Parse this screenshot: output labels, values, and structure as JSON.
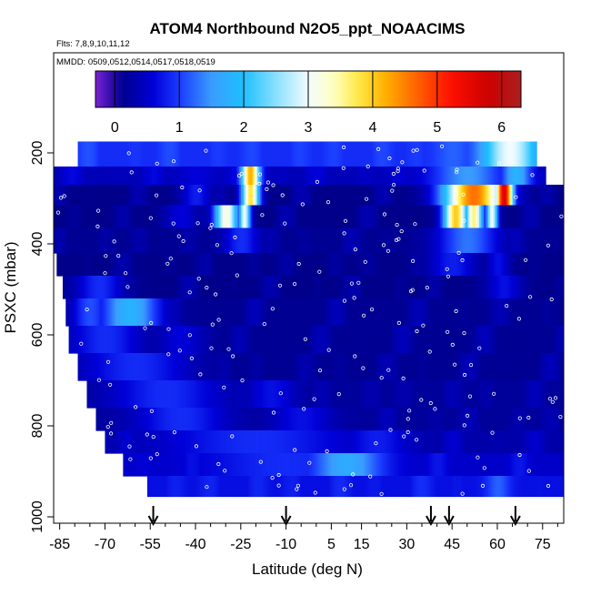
{
  "chart_data": {
    "type": "heatmap",
    "title": "ATOM4 Northbound N2O5_ppt_NOAACIMS",
    "subtitle_flights": "Flts: 7,8,9,10,11,12",
    "subtitle_dates": "MMDD: 0509,0512,0514,0517,0518,0519",
    "xlabel": "Latitude (deg N)",
    "ylabel": "PSXC (mbar)",
    "x_ticks": [
      "-85",
      "-70",
      "-55",
      "-40",
      "-25",
      "-10",
      "5",
      "15",
      "30",
      "45",
      "60",
      "75"
    ],
    "x_tick_values": [
      -85,
      -70,
      -55,
      -40,
      -25,
      -10,
      5,
      15,
      30,
      45,
      60,
      75
    ],
    "y_ticks": [
      "200",
      "400",
      "600",
      "800",
      "1000"
    ],
    "y_tick_values": [
      200,
      400,
      600,
      800,
      1000
    ],
    "xlim": [
      -87,
      82
    ],
    "ylim": [
      1010,
      0
    ],
    "colorbar": {
      "min": -0.3,
      "max": 6.3,
      "ticks": [
        "0",
        "1",
        "2",
        "3",
        "4",
        "5",
        "6"
      ],
      "tick_values": [
        0,
        1,
        2,
        3,
        4,
        5,
        6
      ]
    },
    "arrow_latitudes": [
      -54,
      -10,
      38,
      44,
      66
    ],
    "heatmap_rows": [
      {
        "p_top": 175,
        "p_bot": 230,
        "lat_start": -79,
        "lat_end": 73,
        "base": 0.9,
        "hotspots": [
          {
            "lat": 64,
            "w": 9,
            "v": 3.0
          },
          {
            "lat": 45,
            "w": 6,
            "v": 1.2
          },
          {
            "lat": 0,
            "w": 20,
            "v": 0.9
          }
        ]
      },
      {
        "p_top": 230,
        "p_bot": 270,
        "lat_start": -87,
        "lat_end": 76,
        "base": 0.4,
        "hotspots": [
          {
            "lat": -22,
            "w": 3,
            "v": 4.2
          },
          {
            "lat": 50,
            "w": 12,
            "v": 1.5
          },
          {
            "lat": 66,
            "w": 5,
            "v": 1.8
          },
          {
            "lat": -40,
            "w": 6,
            "v": 0.6
          }
        ]
      },
      {
        "p_top": 270,
        "p_bot": 315,
        "lat_start": -87,
        "lat_end": 82,
        "base": 0.1,
        "hotspots": [
          {
            "lat": -22,
            "w": 3,
            "v": 3.8
          },
          {
            "lat": 52,
            "w": 10,
            "v": 4.6
          },
          {
            "lat": 62,
            "w": 3,
            "v": 5.6
          },
          {
            "lat": -40,
            "w": 5,
            "v": 0.8
          }
        ]
      },
      {
        "p_top": 315,
        "p_bot": 365,
        "lat_start": -87,
        "lat_end": 82,
        "base": 0.1,
        "hotspots": [
          {
            "lat": -30,
            "w": 4,
            "v": 3.2
          },
          {
            "lat": -24,
            "w": 2,
            "v": 3.0
          },
          {
            "lat": 46,
            "w": 4,
            "v": 4.0
          },
          {
            "lat": 52,
            "w": 3,
            "v": 3.6
          },
          {
            "lat": 58,
            "w": 2,
            "v": 3.0
          },
          {
            "lat": -45,
            "w": 6,
            "v": 0.6
          }
        ]
      },
      {
        "p_top": 365,
        "p_bot": 420,
        "lat_start": -87,
        "lat_end": 82,
        "base": 0.15,
        "hotspots": [
          {
            "lat": -25,
            "w": 6,
            "v": 0.9
          },
          {
            "lat": 50,
            "w": 10,
            "v": 1.3
          }
        ]
      },
      {
        "p_top": 420,
        "p_bot": 470,
        "lat_start": -86,
        "lat_end": 82,
        "base": 0.1,
        "hotspots": [
          {
            "lat": 45,
            "w": 8,
            "v": 0.8
          },
          {
            "lat": 60,
            "w": 4,
            "v": 0.7
          }
        ]
      },
      {
        "p_top": 470,
        "p_bot": 520,
        "lat_start": -84,
        "lat_end": 82,
        "base": 0.1,
        "hotspots": [
          {
            "lat": -72,
            "w": 8,
            "v": 0.9
          },
          {
            "lat": 62,
            "w": 6,
            "v": 0.7
          }
        ]
      },
      {
        "p_top": 520,
        "p_bot": 580,
        "lat_start": -83,
        "lat_end": 82,
        "base": 0.15,
        "hotspots": [
          {
            "lat": -62,
            "w": 10,
            "v": 1.8
          },
          {
            "lat": -75,
            "w": 6,
            "v": 1.1
          }
        ]
      },
      {
        "p_top": 580,
        "p_bot": 640,
        "lat_start": -82,
        "lat_end": 82,
        "base": 0.15,
        "hotspots": [
          {
            "lat": -70,
            "w": 12,
            "v": 0.9
          },
          {
            "lat": -45,
            "w": 8,
            "v": 0.6
          }
        ]
      },
      {
        "p_top": 640,
        "p_bot": 700,
        "lat_start": -79,
        "lat_end": 82,
        "base": 0.15,
        "hotspots": [
          {
            "lat": -60,
            "w": 18,
            "v": 0.9
          }
        ]
      },
      {
        "p_top": 700,
        "p_bot": 760,
        "lat_start": -76,
        "lat_end": 82,
        "base": 0.2,
        "hotspots": [
          {
            "lat": -50,
            "w": 18,
            "v": 0.9
          },
          {
            "lat": -15,
            "w": 8,
            "v": 0.7
          }
        ]
      },
      {
        "p_top": 760,
        "p_bot": 810,
        "lat_start": -73,
        "lat_end": 82,
        "base": 0.2,
        "hotspots": [
          {
            "lat": -45,
            "w": 15,
            "v": 0.9
          },
          {
            "lat": -5,
            "w": 10,
            "v": 0.7
          }
        ]
      },
      {
        "p_top": 810,
        "p_bot": 860,
        "lat_start": -70,
        "lat_end": 82,
        "base": 0.3,
        "hotspots": [
          {
            "lat": -20,
            "w": 30,
            "v": 0.9
          },
          {
            "lat": 20,
            "w": 10,
            "v": 0.8
          }
        ]
      },
      {
        "p_top": 860,
        "p_bot": 910,
        "lat_start": -64,
        "lat_end": 82,
        "base": 0.5,
        "hotspots": [
          {
            "lat": 10,
            "w": 12,
            "v": 1.7
          },
          {
            "lat": -10,
            "w": 25,
            "v": 0.9
          }
        ]
      },
      {
        "p_top": 910,
        "p_bot": 955,
        "lat_start": -56,
        "lat_end": 82,
        "base": 0.7,
        "hotspots": [
          {
            "lat": 60,
            "w": 4,
            "v": 1.2
          }
        ]
      }
    ]
  }
}
